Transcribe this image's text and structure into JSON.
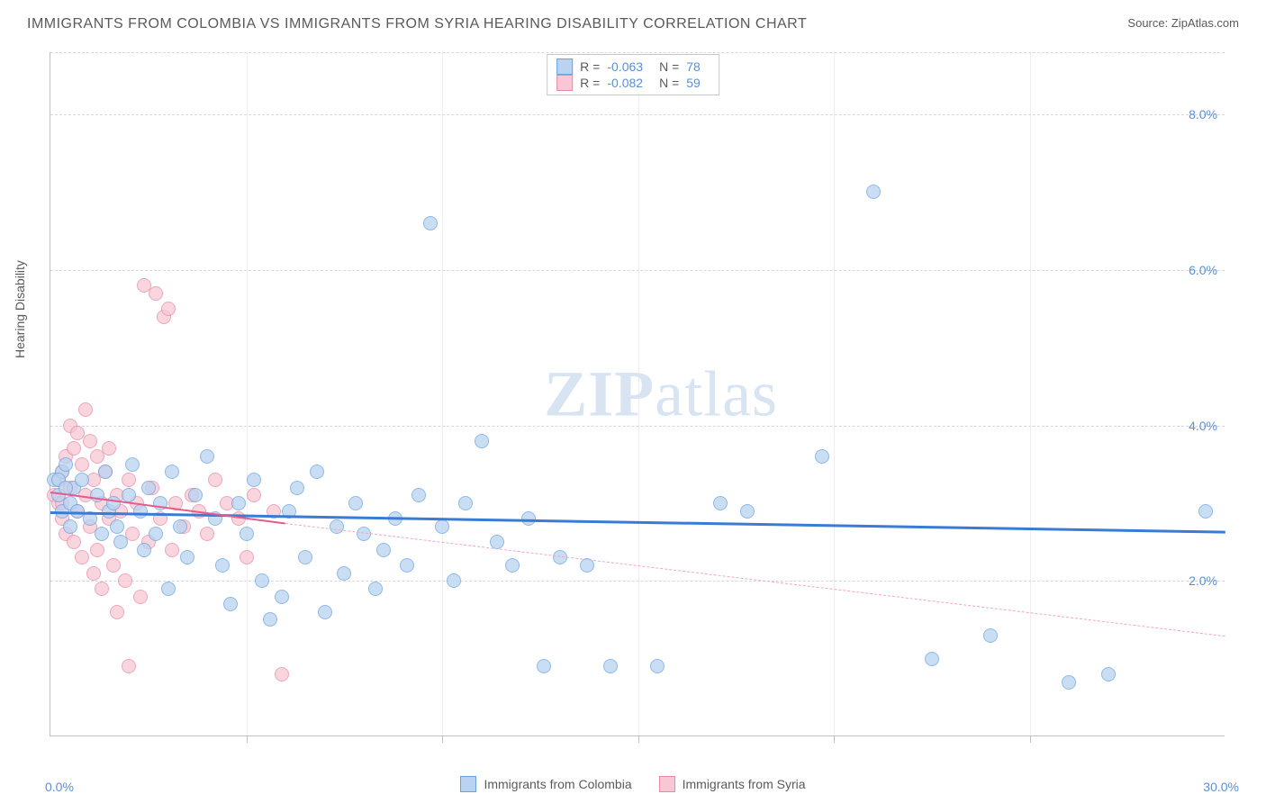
{
  "title": "IMMIGRANTS FROM COLOMBIA VS IMMIGRANTS FROM SYRIA HEARING DISABILITY CORRELATION CHART",
  "source_label": "Source:",
  "source_name": "ZipAtlas.com",
  "y_axis_label": "Hearing Disability",
  "watermark_bold": "ZIP",
  "watermark_rest": "atlas",
  "chart": {
    "type": "scatter",
    "background_color": "#ffffff",
    "grid_color": "#d8d8d8",
    "axis_color": "#c0c0c0",
    "label_color": "#5a5a5a",
    "tick_color": "#5a8fd6",
    "xlim": [
      0,
      30
    ],
    "ylim": [
      0,
      8.8
    ],
    "x_ticks": [
      0,
      5,
      10,
      15,
      20,
      25,
      30
    ],
    "x_tick_labels": [
      "0.0%",
      "",
      "",
      "",
      "",
      "",
      "30.0%"
    ],
    "y_gridlines": [
      2,
      4,
      6,
      8
    ],
    "y_tick_labels": [
      "2.0%",
      "4.0%",
      "6.0%",
      "8.0%"
    ],
    "marker_radius": 8,
    "marker_stroke_width": 1.2,
    "series": [
      {
        "name": "Immigrants from Colombia",
        "fill": "#b9d3f0",
        "stroke": "#6aa2e0",
        "R": "-0.063",
        "N": "78",
        "trend": {
          "x1": 0,
          "y1": 2.9,
          "x2": 30,
          "y2": 2.65,
          "color": "#3a7bd5",
          "width": 3,
          "dash": "solid"
        },
        "trend_dash_extension": null,
        "points": [
          [
            0.1,
            3.3
          ],
          [
            0.2,
            3.1
          ],
          [
            0.3,
            3.4
          ],
          [
            0.3,
            2.9
          ],
          [
            0.4,
            3.5
          ],
          [
            0.5,
            3.0
          ],
          [
            0.5,
            2.7
          ],
          [
            0.6,
            3.2
          ],
          [
            0.7,
            2.9
          ],
          [
            0.8,
            3.3
          ],
          [
            1.0,
            2.8
          ],
          [
            1.2,
            3.1
          ],
          [
            1.3,
            2.6
          ],
          [
            1.4,
            3.4
          ],
          [
            1.5,
            2.9
          ],
          [
            1.6,
            3.0
          ],
          [
            1.7,
            2.7
          ],
          [
            1.8,
            2.5
          ],
          [
            2.0,
            3.1
          ],
          [
            2.1,
            3.5
          ],
          [
            2.3,
            2.9
          ],
          [
            2.4,
            2.4
          ],
          [
            2.5,
            3.2
          ],
          [
            2.7,
            2.6
          ],
          [
            2.8,
            3.0
          ],
          [
            3.0,
            1.9
          ],
          [
            3.1,
            3.4
          ],
          [
            3.3,
            2.7
          ],
          [
            3.5,
            2.3
          ],
          [
            3.7,
            3.1
          ],
          [
            4.0,
            3.6
          ],
          [
            4.2,
            2.8
          ],
          [
            4.4,
            2.2
          ],
          [
            4.6,
            1.7
          ],
          [
            4.8,
            3.0
          ],
          [
            5.0,
            2.6
          ],
          [
            5.2,
            3.3
          ],
          [
            5.4,
            2.0
          ],
          [
            5.6,
            1.5
          ],
          [
            5.9,
            1.8
          ],
          [
            6.1,
            2.9
          ],
          [
            6.3,
            3.2
          ],
          [
            6.5,
            2.3
          ],
          [
            6.8,
            3.4
          ],
          [
            7.0,
            1.6
          ],
          [
            7.3,
            2.7
          ],
          [
            7.5,
            2.1
          ],
          [
            7.8,
            3.0
          ],
          [
            8.0,
            2.6
          ],
          [
            8.3,
            1.9
          ],
          [
            8.5,
            2.4
          ],
          [
            8.8,
            2.8
          ],
          [
            9.1,
            2.2
          ],
          [
            9.4,
            3.1
          ],
          [
            9.7,
            6.6
          ],
          [
            10.0,
            2.7
          ],
          [
            10.3,
            2.0
          ],
          [
            10.6,
            3.0
          ],
          [
            11.0,
            3.8
          ],
          [
            11.4,
            2.5
          ],
          [
            11.8,
            2.2
          ],
          [
            12.2,
            2.8
          ],
          [
            12.6,
            0.9
          ],
          [
            13.0,
            2.3
          ],
          [
            13.7,
            2.2
          ],
          [
            14.3,
            0.9
          ],
          [
            15.5,
            0.9
          ],
          [
            17.1,
            3.0
          ],
          [
            17.8,
            2.9
          ],
          [
            19.7,
            3.6
          ],
          [
            21.0,
            7.0
          ],
          [
            22.5,
            1.0
          ],
          [
            24.0,
            1.3
          ],
          [
            26.0,
            0.7
          ],
          [
            27.0,
            0.8
          ],
          [
            29.5,
            2.9
          ],
          [
            0.2,
            3.3
          ],
          [
            0.4,
            3.2
          ]
        ]
      },
      {
        "name": "Immigrants from Syria",
        "fill": "#f7c7d4",
        "stroke": "#e88aa6",
        "R": "-0.082",
        "N": "59",
        "trend": {
          "x1": 0,
          "y1": 3.15,
          "x2": 6.0,
          "y2": 2.75,
          "color": "#e85a8a",
          "width": 2.5,
          "dash": "solid"
        },
        "trend_dash_extension": {
          "x1": 6.0,
          "y1": 2.75,
          "x2": 30,
          "y2": 1.3,
          "color": "#f0a8bd",
          "width": 1,
          "dash": "dashed"
        },
        "points": [
          [
            0.1,
            3.1
          ],
          [
            0.2,
            3.0
          ],
          [
            0.2,
            3.3
          ],
          [
            0.3,
            3.4
          ],
          [
            0.3,
            2.8
          ],
          [
            0.4,
            3.6
          ],
          [
            0.4,
            2.6
          ],
          [
            0.5,
            4.0
          ],
          [
            0.5,
            3.2
          ],
          [
            0.6,
            3.7
          ],
          [
            0.6,
            2.5
          ],
          [
            0.7,
            3.9
          ],
          [
            0.7,
            2.9
          ],
          [
            0.8,
            3.5
          ],
          [
            0.8,
            2.3
          ],
          [
            0.9,
            3.1
          ],
          [
            0.9,
            4.2
          ],
          [
            1.0,
            2.7
          ],
          [
            1.0,
            3.8
          ],
          [
            1.1,
            3.3
          ],
          [
            1.1,
            2.1
          ],
          [
            1.2,
            3.6
          ],
          [
            1.2,
            2.4
          ],
          [
            1.3,
            3.0
          ],
          [
            1.3,
            1.9
          ],
          [
            1.4,
            3.4
          ],
          [
            1.5,
            2.8
          ],
          [
            1.5,
            3.7
          ],
          [
            1.6,
            2.2
          ],
          [
            1.7,
            3.1
          ],
          [
            1.7,
            1.6
          ],
          [
            1.8,
            2.9
          ],
          [
            1.9,
            2.0
          ],
          [
            2.0,
            3.3
          ],
          [
            2.0,
            0.9
          ],
          [
            2.1,
            2.6
          ],
          [
            2.2,
            3.0
          ],
          [
            2.3,
            1.8
          ],
          [
            2.4,
            5.8
          ],
          [
            2.5,
            2.5
          ],
          [
            2.6,
            3.2
          ],
          [
            2.7,
            5.7
          ],
          [
            2.8,
            2.8
          ],
          [
            2.9,
            5.4
          ],
          [
            3.0,
            5.5
          ],
          [
            3.1,
            2.4
          ],
          [
            3.2,
            3.0
          ],
          [
            3.4,
            2.7
          ],
          [
            3.6,
            3.1
          ],
          [
            3.8,
            2.9
          ],
          [
            4.0,
            2.6
          ],
          [
            4.2,
            3.3
          ],
          [
            4.5,
            3.0
          ],
          [
            4.8,
            2.8
          ],
          [
            5.0,
            2.3
          ],
          [
            5.2,
            3.1
          ],
          [
            5.7,
            2.9
          ],
          [
            5.9,
            0.8
          ],
          [
            0.3,
            3.0
          ]
        ]
      }
    ]
  },
  "legend_top_labels": {
    "R": "R =",
    "N": "N ="
  },
  "legend_bottom": [
    {
      "label": "Immigrants from Colombia",
      "fill": "#b9d3f0",
      "stroke": "#6aa2e0"
    },
    {
      "label": "Immigrants from Syria",
      "fill": "#f7c7d4",
      "stroke": "#e88aa6"
    }
  ]
}
